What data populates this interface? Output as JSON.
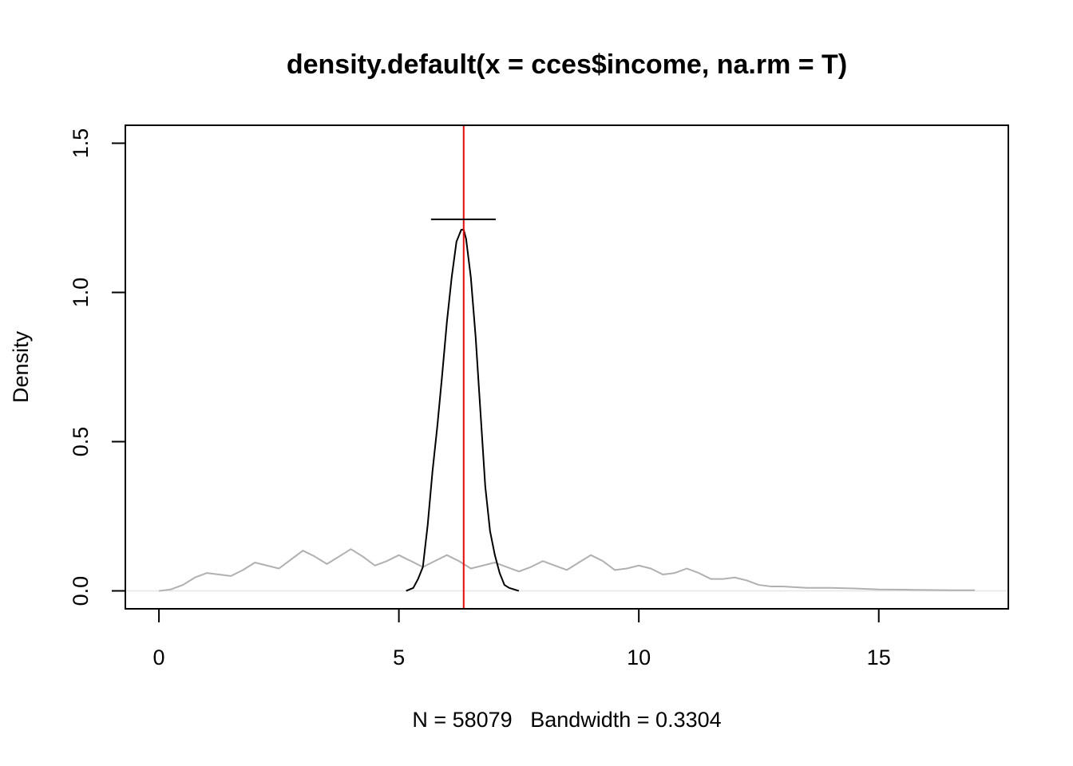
{
  "chart_data": {
    "type": "line",
    "title": "density.default(x = cces$income, na.rm = T)",
    "xlabel": "N = 58079   Bandwidth = 0.3304",
    "ylabel": "Density",
    "xlim": [
      -0.7,
      17.7
    ],
    "ylim": [
      -0.06,
      1.56
    ],
    "x_ticks": [
      0,
      5,
      10,
      15
    ],
    "x_tick_labels": [
      "0",
      "5",
      "10",
      "15"
    ],
    "y_ticks": [
      0.0,
      0.5,
      1.0,
      1.5
    ],
    "y_tick_labels": [
      "0.0",
      "0.5",
      "1.0",
      "1.5"
    ],
    "grid": false,
    "legend": "none",
    "series": [
      {
        "color": "#b0b0b0",
        "x": [
          0,
          0.25,
          0.5,
          0.75,
          1,
          1.25,
          1.5,
          1.75,
          2,
          2.25,
          2.5,
          2.75,
          3,
          3.25,
          3.5,
          3.75,
          4,
          4.25,
          4.5,
          4.75,
          5,
          5.25,
          5.5,
          5.75,
          6,
          6.25,
          6.5,
          6.75,
          7,
          7.25,
          7.5,
          7.75,
          8,
          8.25,
          8.5,
          8.75,
          9,
          9.25,
          9.5,
          9.75,
          10,
          10.25,
          10.5,
          10.75,
          11,
          11.25,
          11.5,
          11.75,
          12,
          12.25,
          12.5,
          12.75,
          13,
          13.5,
          14,
          14.5,
          15,
          15.5,
          16,
          16.5,
          17
        ],
        "y": [
          0.0,
          0.005,
          0.02,
          0.045,
          0.06,
          0.055,
          0.05,
          0.07,
          0.095,
          0.085,
          0.075,
          0.105,
          0.135,
          0.115,
          0.09,
          0.115,
          0.14,
          0.115,
          0.085,
          0.1,
          0.12,
          0.1,
          0.08,
          0.1,
          0.12,
          0.1,
          0.075,
          0.085,
          0.095,
          0.08,
          0.065,
          0.08,
          0.1,
          0.085,
          0.07,
          0.095,
          0.12,
          0.1,
          0.07,
          0.075,
          0.085,
          0.075,
          0.055,
          0.06,
          0.075,
          0.06,
          0.04,
          0.04,
          0.045,
          0.035,
          0.02,
          0.015,
          0.015,
          0.01,
          0.01,
          0.008,
          0.005,
          0.004,
          0.003,
          0.002,
          0.002
        ]
      },
      {
        "color": "#000000",
        "x": [
          5.15,
          5.3,
          5.4,
          5.5,
          5.6,
          5.7,
          5.8,
          5.9,
          6.0,
          6.1,
          6.2,
          6.3,
          6.35,
          6.4,
          6.5,
          6.6,
          6.7,
          6.8,
          6.9,
          7.0,
          7.1,
          7.2,
          7.3,
          7.4,
          7.5
        ],
        "y": [
          0.0,
          0.01,
          0.04,
          0.08,
          0.22,
          0.4,
          0.55,
          0.72,
          0.9,
          1.05,
          1.17,
          1.21,
          1.21,
          1.18,
          1.05,
          0.85,
          0.6,
          0.35,
          0.2,
          0.12,
          0.06,
          0.02,
          0.01,
          0.005,
          0.0
        ]
      }
    ],
    "annotations": [
      {
        "type": "vline",
        "x": 6.35,
        "color": "#ff0000"
      },
      {
        "type": "hsegment",
        "x0": 5.67,
        "x1": 7.02,
        "y": 1.245,
        "color": "#000000"
      },
      {
        "type": "hline",
        "y": 0,
        "color": "#e6e6e6"
      }
    ]
  }
}
